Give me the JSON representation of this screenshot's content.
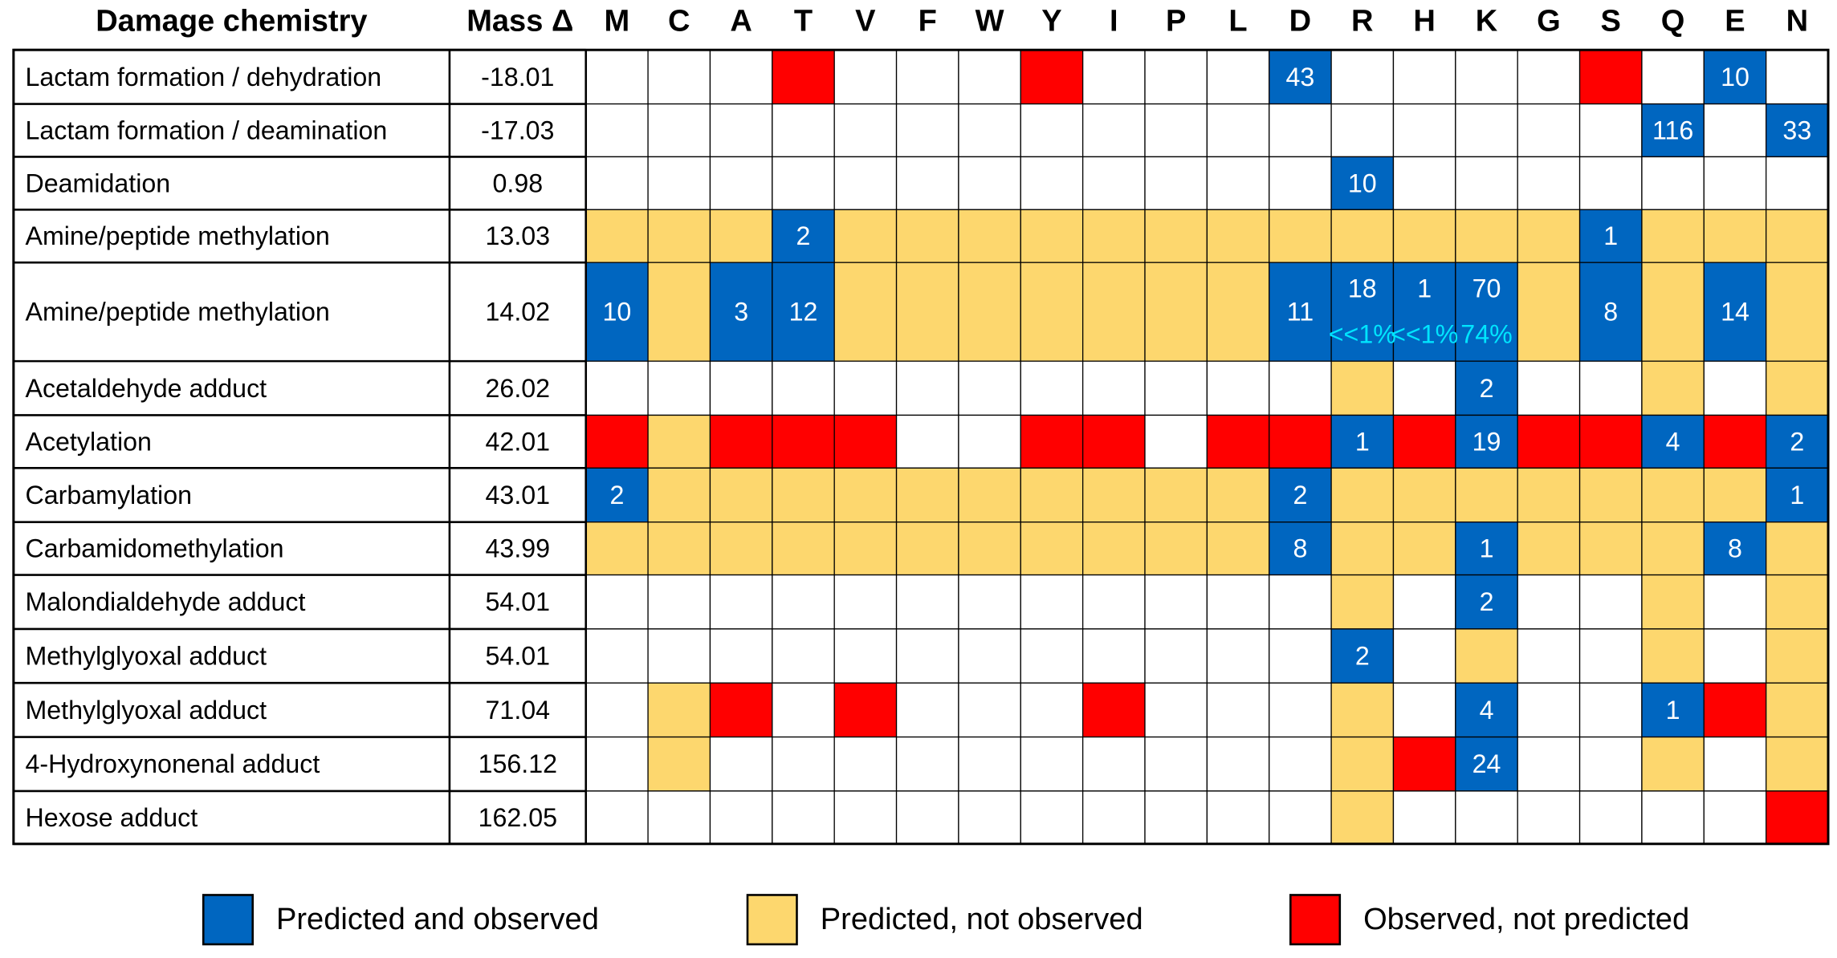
{
  "chart_data": {
    "type": "table",
    "header_chemistry": "Damage chemistry",
    "header_mass": "Mass Δ",
    "residues": [
      "M",
      "C",
      "A",
      "T",
      "V",
      "F",
      "W",
      "Y",
      "I",
      "P",
      "L",
      "D",
      "R",
      "H",
      "K",
      "G",
      "S",
      "Q",
      "E",
      "N"
    ],
    "status_codes": {
      "0": "empty",
      "1": "Predicted and observed",
      "2": "Predicted, not observed",
      "3": "Observed, not predicted"
    },
    "colors": {
      "1": "#0066C0",
      "2": "#FDD76E",
      "3": "#FF0000",
      "0": "#FFFFFF",
      "label": "#FFFFFF",
      "percent": "#00E5FF",
      "line": "#000000"
    },
    "rows": [
      {
        "chemistry": "Lactam formation / dehydration",
        "mass": "-18.01",
        "status": [
          0,
          0,
          0,
          3,
          0,
          0,
          0,
          3,
          0,
          0,
          0,
          1,
          0,
          0,
          0,
          0,
          3,
          0,
          1,
          0
        ],
        "labels": [
          "",
          "",
          "",
          "",
          "",
          "",
          "",
          "",
          "",
          "",
          "",
          "43",
          "",
          "",
          "",
          "",
          "",
          "",
          "10",
          ""
        ]
      },
      {
        "chemistry": "Lactam formation / deamination",
        "mass": "-17.03",
        "status": [
          0,
          0,
          0,
          0,
          0,
          0,
          0,
          0,
          0,
          0,
          0,
          0,
          0,
          0,
          0,
          0,
          0,
          1,
          0,
          1
        ],
        "labels": [
          "",
          "",
          "",
          "",
          "",
          "",
          "",
          "",
          "",
          "",
          "",
          "",
          "",
          "",
          "",
          "",
          "",
          "116",
          "",
          "33"
        ]
      },
      {
        "chemistry": "Deamidation",
        "mass": "0.98",
        "status": [
          0,
          0,
          0,
          0,
          0,
          0,
          0,
          0,
          0,
          0,
          0,
          0,
          1,
          0,
          0,
          0,
          0,
          0,
          0,
          0
        ],
        "labels": [
          "",
          "",
          "",
          "",
          "",
          "",
          "",
          "",
          "",
          "",
          "",
          "",
          "10",
          "",
          "",
          "",
          "",
          "",
          "",
          ""
        ]
      },
      {
        "chemistry": "Amine/peptide methylation",
        "mass": "13.03",
        "status": [
          2,
          2,
          2,
          1,
          2,
          2,
          2,
          2,
          2,
          2,
          2,
          2,
          2,
          2,
          2,
          2,
          1,
          2,
          2,
          2
        ],
        "labels": [
          "",
          "",
          "",
          "2",
          "",
          "",
          "",
          "",
          "",
          "",
          "",
          "",
          "",
          "",
          "",
          "",
          "1",
          "",
          "",
          ""
        ]
      },
      {
        "chemistry": "Amine/peptide methylation",
        "mass": "14.02",
        "status": [
          1,
          2,
          1,
          1,
          2,
          2,
          2,
          2,
          2,
          2,
          2,
          1,
          1,
          1,
          1,
          2,
          1,
          2,
          1,
          2
        ],
        "labels": [
          "10",
          "",
          "3",
          "12",
          "",
          "",
          "",
          "",
          "",
          "",
          "",
          "11",
          "18",
          "1",
          "70",
          "",
          "8",
          "",
          "14",
          ""
        ],
        "percents": [
          "",
          "",
          "",
          "",
          "",
          "",
          "",
          "",
          "",
          "",
          "",
          "",
          "<<1%",
          "<<1%",
          "74%",
          "",
          "",
          "",
          "",
          ""
        ]
      },
      {
        "chemistry": "Acetaldehyde adduct",
        "mass": "26.02",
        "status": [
          0,
          0,
          0,
          0,
          0,
          0,
          0,
          0,
          0,
          0,
          0,
          0,
          2,
          0,
          1,
          0,
          0,
          2,
          0,
          2
        ],
        "labels": [
          "",
          "",
          "",
          "",
          "",
          "",
          "",
          "",
          "",
          "",
          "",
          "",
          "",
          "",
          "2",
          "",
          "",
          "",
          "",
          ""
        ]
      },
      {
        "chemistry": "Acetylation",
        "mass": "42.01",
        "status": [
          3,
          2,
          3,
          3,
          3,
          0,
          0,
          3,
          3,
          0,
          3,
          3,
          1,
          3,
          1,
          3,
          3,
          1,
          3,
          1
        ],
        "labels": [
          "",
          "",
          "",
          "",
          "",
          "",
          "",
          "",
          "",
          "",
          "",
          "",
          "1",
          "",
          "19",
          "",
          "",
          "4",
          "",
          "2"
        ]
      },
      {
        "chemistry": "Carbamylation",
        "mass": "43.01",
        "status": [
          1,
          2,
          2,
          2,
          2,
          2,
          2,
          2,
          2,
          2,
          2,
          1,
          2,
          2,
          2,
          2,
          2,
          2,
          2,
          1
        ],
        "labels": [
          "2",
          "",
          "",
          "",
          "",
          "",
          "",
          "",
          "",
          "",
          "",
          "2",
          "",
          "",
          "",
          "",
          "",
          "",
          "",
          "1"
        ]
      },
      {
        "chemistry": "Carbamidomethylation",
        "mass": "43.99",
        "status": [
          2,
          2,
          2,
          2,
          2,
          2,
          2,
          2,
          2,
          2,
          2,
          1,
          2,
          2,
          1,
          2,
          2,
          2,
          1,
          2
        ],
        "labels": [
          "",
          "",
          "",
          "",
          "",
          "",
          "",
          "",
          "",
          "",
          "",
          "8",
          "",
          "",
          "1",
          "",
          "",
          "",
          "8",
          ""
        ]
      },
      {
        "chemistry": "Malondialdehyde adduct",
        "mass": "54.01",
        "status": [
          0,
          0,
          0,
          0,
          0,
          0,
          0,
          0,
          0,
          0,
          0,
          0,
          2,
          0,
          1,
          0,
          0,
          2,
          0,
          2
        ],
        "labels": [
          "",
          "",
          "",
          "",
          "",
          "",
          "",
          "",
          "",
          "",
          "",
          "",
          "",
          "",
          "2",
          "",
          "",
          "",
          "",
          ""
        ]
      },
      {
        "chemistry": "Methylglyoxal adduct",
        "mass": "54.01",
        "status": [
          0,
          0,
          0,
          0,
          0,
          0,
          0,
          0,
          0,
          0,
          0,
          0,
          1,
          0,
          2,
          0,
          0,
          2,
          0,
          2
        ],
        "labels": [
          "",
          "",
          "",
          "",
          "",
          "",
          "",
          "",
          "",
          "",
          "",
          "",
          "2",
          "",
          "",
          "",
          "",
          "",
          "",
          ""
        ]
      },
      {
        "chemistry": "Methylglyoxal adduct",
        "mass": "71.04",
        "status": [
          0,
          2,
          3,
          0,
          3,
          0,
          0,
          0,
          3,
          0,
          0,
          0,
          2,
          0,
          1,
          0,
          0,
          1,
          3,
          2
        ],
        "labels": [
          "",
          "",
          "",
          "",
          "",
          "",
          "",
          "",
          "",
          "",
          "",
          "",
          "",
          "",
          "4",
          "",
          "",
          "1",
          "",
          ""
        ]
      },
      {
        "chemistry": "4-Hydroxynonenal adduct",
        "mass": "156.12",
        "status": [
          0,
          2,
          0,
          0,
          0,
          0,
          0,
          0,
          0,
          0,
          0,
          0,
          2,
          3,
          1,
          0,
          0,
          2,
          0,
          2
        ],
        "labels": [
          "",
          "",
          "",
          "",
          "",
          "",
          "",
          "",
          "",
          "",
          "",
          "",
          "",
          "",
          "24",
          "",
          "",
          "",
          "",
          ""
        ]
      },
      {
        "chemistry": "Hexose adduct",
        "mass": "162.05",
        "status": [
          0,
          0,
          0,
          0,
          0,
          0,
          0,
          0,
          0,
          0,
          0,
          0,
          2,
          0,
          0,
          0,
          0,
          0,
          0,
          3
        ],
        "labels": [
          "",
          "",
          "",
          "",
          "",
          "",
          "",
          "",
          "",
          "",
          "",
          "",
          "",
          "",
          "",
          "",
          "",
          "",
          "",
          ""
        ]
      }
    ],
    "legend": [
      {
        "status": 1,
        "label": "Predicted and observed"
      },
      {
        "status": 2,
        "label": "Predicted, not observed"
      },
      {
        "status": 3,
        "label": "Observed, not predicted"
      }
    ]
  }
}
